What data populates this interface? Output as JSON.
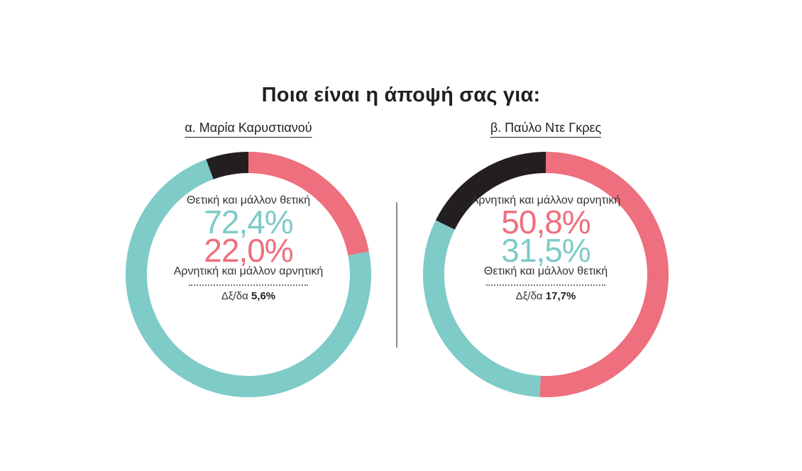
{
  "title": "Ποια είναι η άποψή σας για:",
  "colors": {
    "positive": "#7ecbc8",
    "negative": "#ee6f7d",
    "undecided": "#231f20"
  },
  "chart_data": [
    {
      "type": "pie",
      "subtitle": "α. Μαρία Καρυστιανού",
      "slices": [
        {
          "label": "Αρνητική και μάλλον αρνητική",
          "value": 22.0,
          "value_text": "22,0%",
          "color": "#ee6f7d"
        },
        {
          "label": "Θετική και μάλλον θετική",
          "value": 72.4,
          "value_text": "72,4%",
          "color": "#7ecbc8"
        },
        {
          "label": "Δξ/δα",
          "value": 5.6,
          "value_text": "5,6%",
          "color": "#231f20"
        }
      ],
      "center": {
        "top_label": "Θετική και μάλλον θετική",
        "top_value": "72,4%",
        "top_color": "#7ecbc8",
        "bottom_value": "22,0%",
        "bottom_color": "#ee6f7d",
        "bottom_label": "Αρνητική και μάλλον αρνητική",
        "dk_label": "Δξ/δα",
        "dk_value": "5,6%"
      }
    },
    {
      "type": "pie",
      "subtitle": "β. Παύλο Ντε Γκρες",
      "slices": [
        {
          "label": "Αρνητική και μάλλον αρνητική",
          "value": 50.8,
          "value_text": "50,8%",
          "color": "#ee6f7d"
        },
        {
          "label": "Θετική και μάλλον θετική",
          "value": 31.5,
          "value_text": "31,5%",
          "color": "#7ecbc8"
        },
        {
          "label": "Δξ/δα",
          "value": 17.7,
          "value_text": "17,7%",
          "color": "#231f20"
        }
      ],
      "center": {
        "top_label": "Αρνητική και μάλλον αρνητική",
        "top_value": "50,8%",
        "top_color": "#ee6f7d",
        "bottom_value": "31,5%",
        "bottom_color": "#7ecbc8",
        "bottom_label": "Θετική και μάλλον θετική",
        "dk_label": "Δξ/δα",
        "dk_value": "17,7%"
      }
    }
  ]
}
